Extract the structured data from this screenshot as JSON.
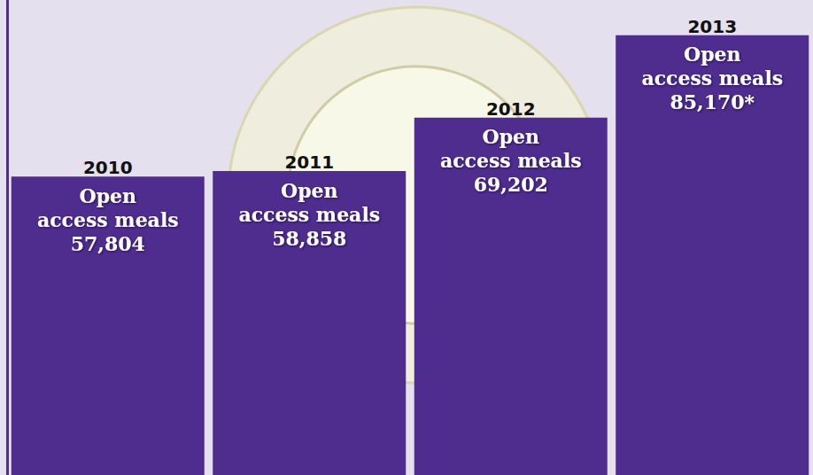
{
  "chart_data": {
    "type": "bar",
    "categories": [
      "2010",
      "2011",
      "2012",
      "2013"
    ],
    "values": [
      57804,
      58858,
      69202,
      85170
    ],
    "value_labels": [
      "57,804",
      "58,858",
      "69,202",
      "85,170*"
    ],
    "annotation": "Open access meals",
    "color": "#4f2d8f",
    "ylim": [
      0,
      92000
    ],
    "yticks": [
      0,
      92000
    ],
    "grid": false,
    "data_labels": true,
    "tick_labels": false
  }
}
